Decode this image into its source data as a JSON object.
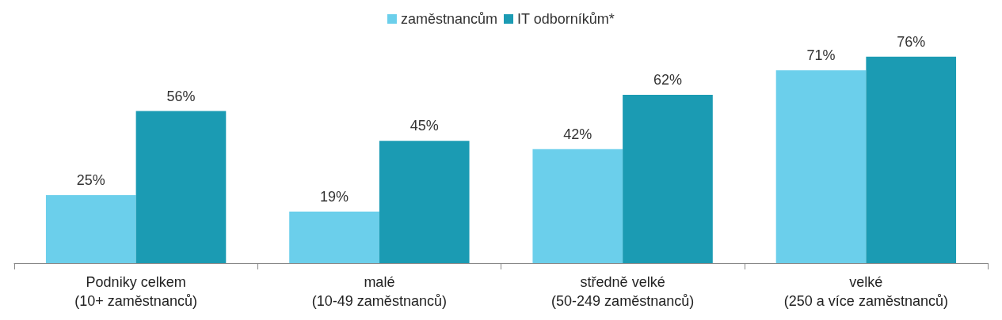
{
  "chart_data": {
    "type": "bar",
    "categories": [
      "Podniky celkem\n(10+ zaměstnanců)",
      "malé\n(10-49 zaměstnanců)",
      "středně velké\n(50-249 zaměstnanců)",
      "velké\n(250 a více zaměstnanců)"
    ],
    "series": [
      {
        "name": "zaměstnancům",
        "color": "#6bcfeb",
        "values": [
          25,
          19,
          42,
          71
        ],
        "value_labels": [
          "25%",
          "19%",
          "42%",
          "71%"
        ]
      },
      {
        "name": "IT odborníkům*",
        "color": "#1b9bb3",
        "values": [
          56,
          45,
          62,
          76
        ],
        "value_labels": [
          "56%",
          "45%",
          "62%",
          "76%"
        ]
      }
    ],
    "legend": "top"
  }
}
